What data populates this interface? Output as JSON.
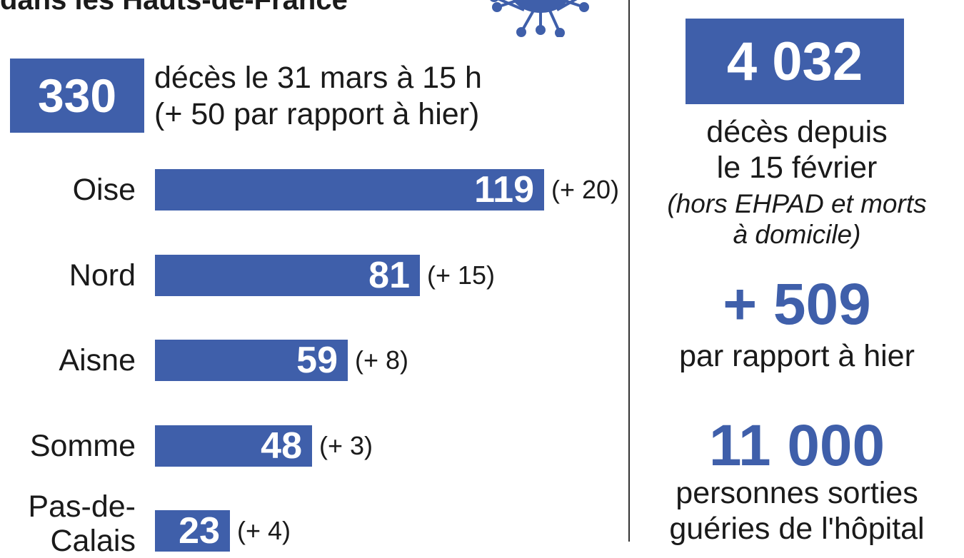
{
  "header": {
    "title_fragment": "dans les Hauts-de-France"
  },
  "icons": {
    "virus": "virus-icon"
  },
  "colors": {
    "accent": "#3f5faa",
    "text": "#1a1a1a"
  },
  "regional": {
    "total_value": "330",
    "desc_line1": "décès le 31 mars à 15 h",
    "desc_line2": "(+ 50 par rapport à hier)"
  },
  "chart_data": {
    "type": "bar",
    "orientation": "horizontal",
    "categories": [
      "Oise",
      "Nord",
      "Aisne",
      "Somme",
      "Pas-de-Calais"
    ],
    "category_display": [
      [
        "Oise"
      ],
      [
        "Nord"
      ],
      [
        "Aisne"
      ],
      [
        "Somme"
      ],
      [
        "Pas-de-",
        "Calais"
      ]
    ],
    "series": [
      {
        "values": [
          119,
          81,
          59,
          48,
          23
        ]
      }
    ],
    "value_labels": [
      "119",
      "81",
      "59",
      "48",
      "23"
    ],
    "change_labels": [
      "(+ 20)",
      "(+ 15)",
      "(+ 8)",
      "(+ 3)",
      "(+ 4)"
    ],
    "title": "",
    "xlabel": "",
    "ylabel": "",
    "xlim": [
      0,
      119
    ]
  },
  "national": {
    "deaths_value": "4 032",
    "deaths_line1": "décès depuis",
    "deaths_line2": "le 15 février",
    "note_line1": "(hors EHPAD et morts",
    "note_line2": "à domicile)",
    "increase_value": "+ 509",
    "increase_label": "par rapport à hier",
    "recovered_value": "11 000",
    "recovered_line1": "personnes sorties",
    "recovered_line2": "guéries de l'hôpital"
  }
}
